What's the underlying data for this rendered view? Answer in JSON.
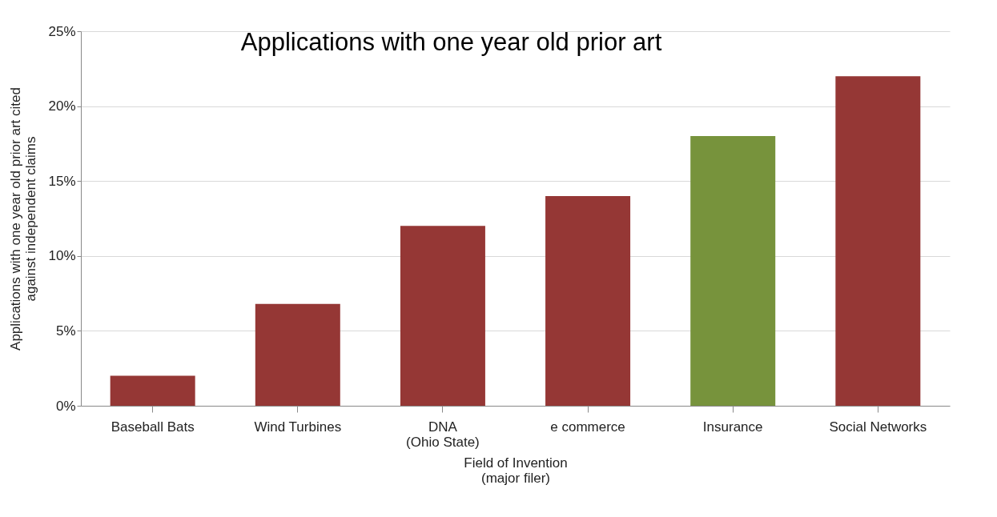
{
  "chart_data": {
    "type": "bar",
    "title": "Applications with one year old prior art",
    "xlabel": "Field of Invention (major filer)",
    "ylabel": "Applications with one year old prior art cited against independent claims",
    "categories": [
      "Baseball Bats",
      "Wind Turbines",
      "DNA (Ohio State)",
      "e commerce",
      "Insurance",
      "Social Networks"
    ],
    "values": [
      2,
      6.8,
      12,
      14,
      18,
      22
    ],
    "colors": [
      "#953735",
      "#953735",
      "#953735",
      "#953735",
      "#77933c",
      "#953735"
    ],
    "ylim": [
      0,
      25
    ],
    "yticks": [
      {
        "value": 0,
        "label": "0%"
      },
      {
        "value": 5,
        "label": "5%"
      },
      {
        "value": 10,
        "label": "10%"
      },
      {
        "value": 15,
        "label": "15%"
      },
      {
        "value": 20,
        "label": "20%"
      },
      {
        "value": 25,
        "label": "25%"
      }
    ],
    "grid": "y"
  }
}
